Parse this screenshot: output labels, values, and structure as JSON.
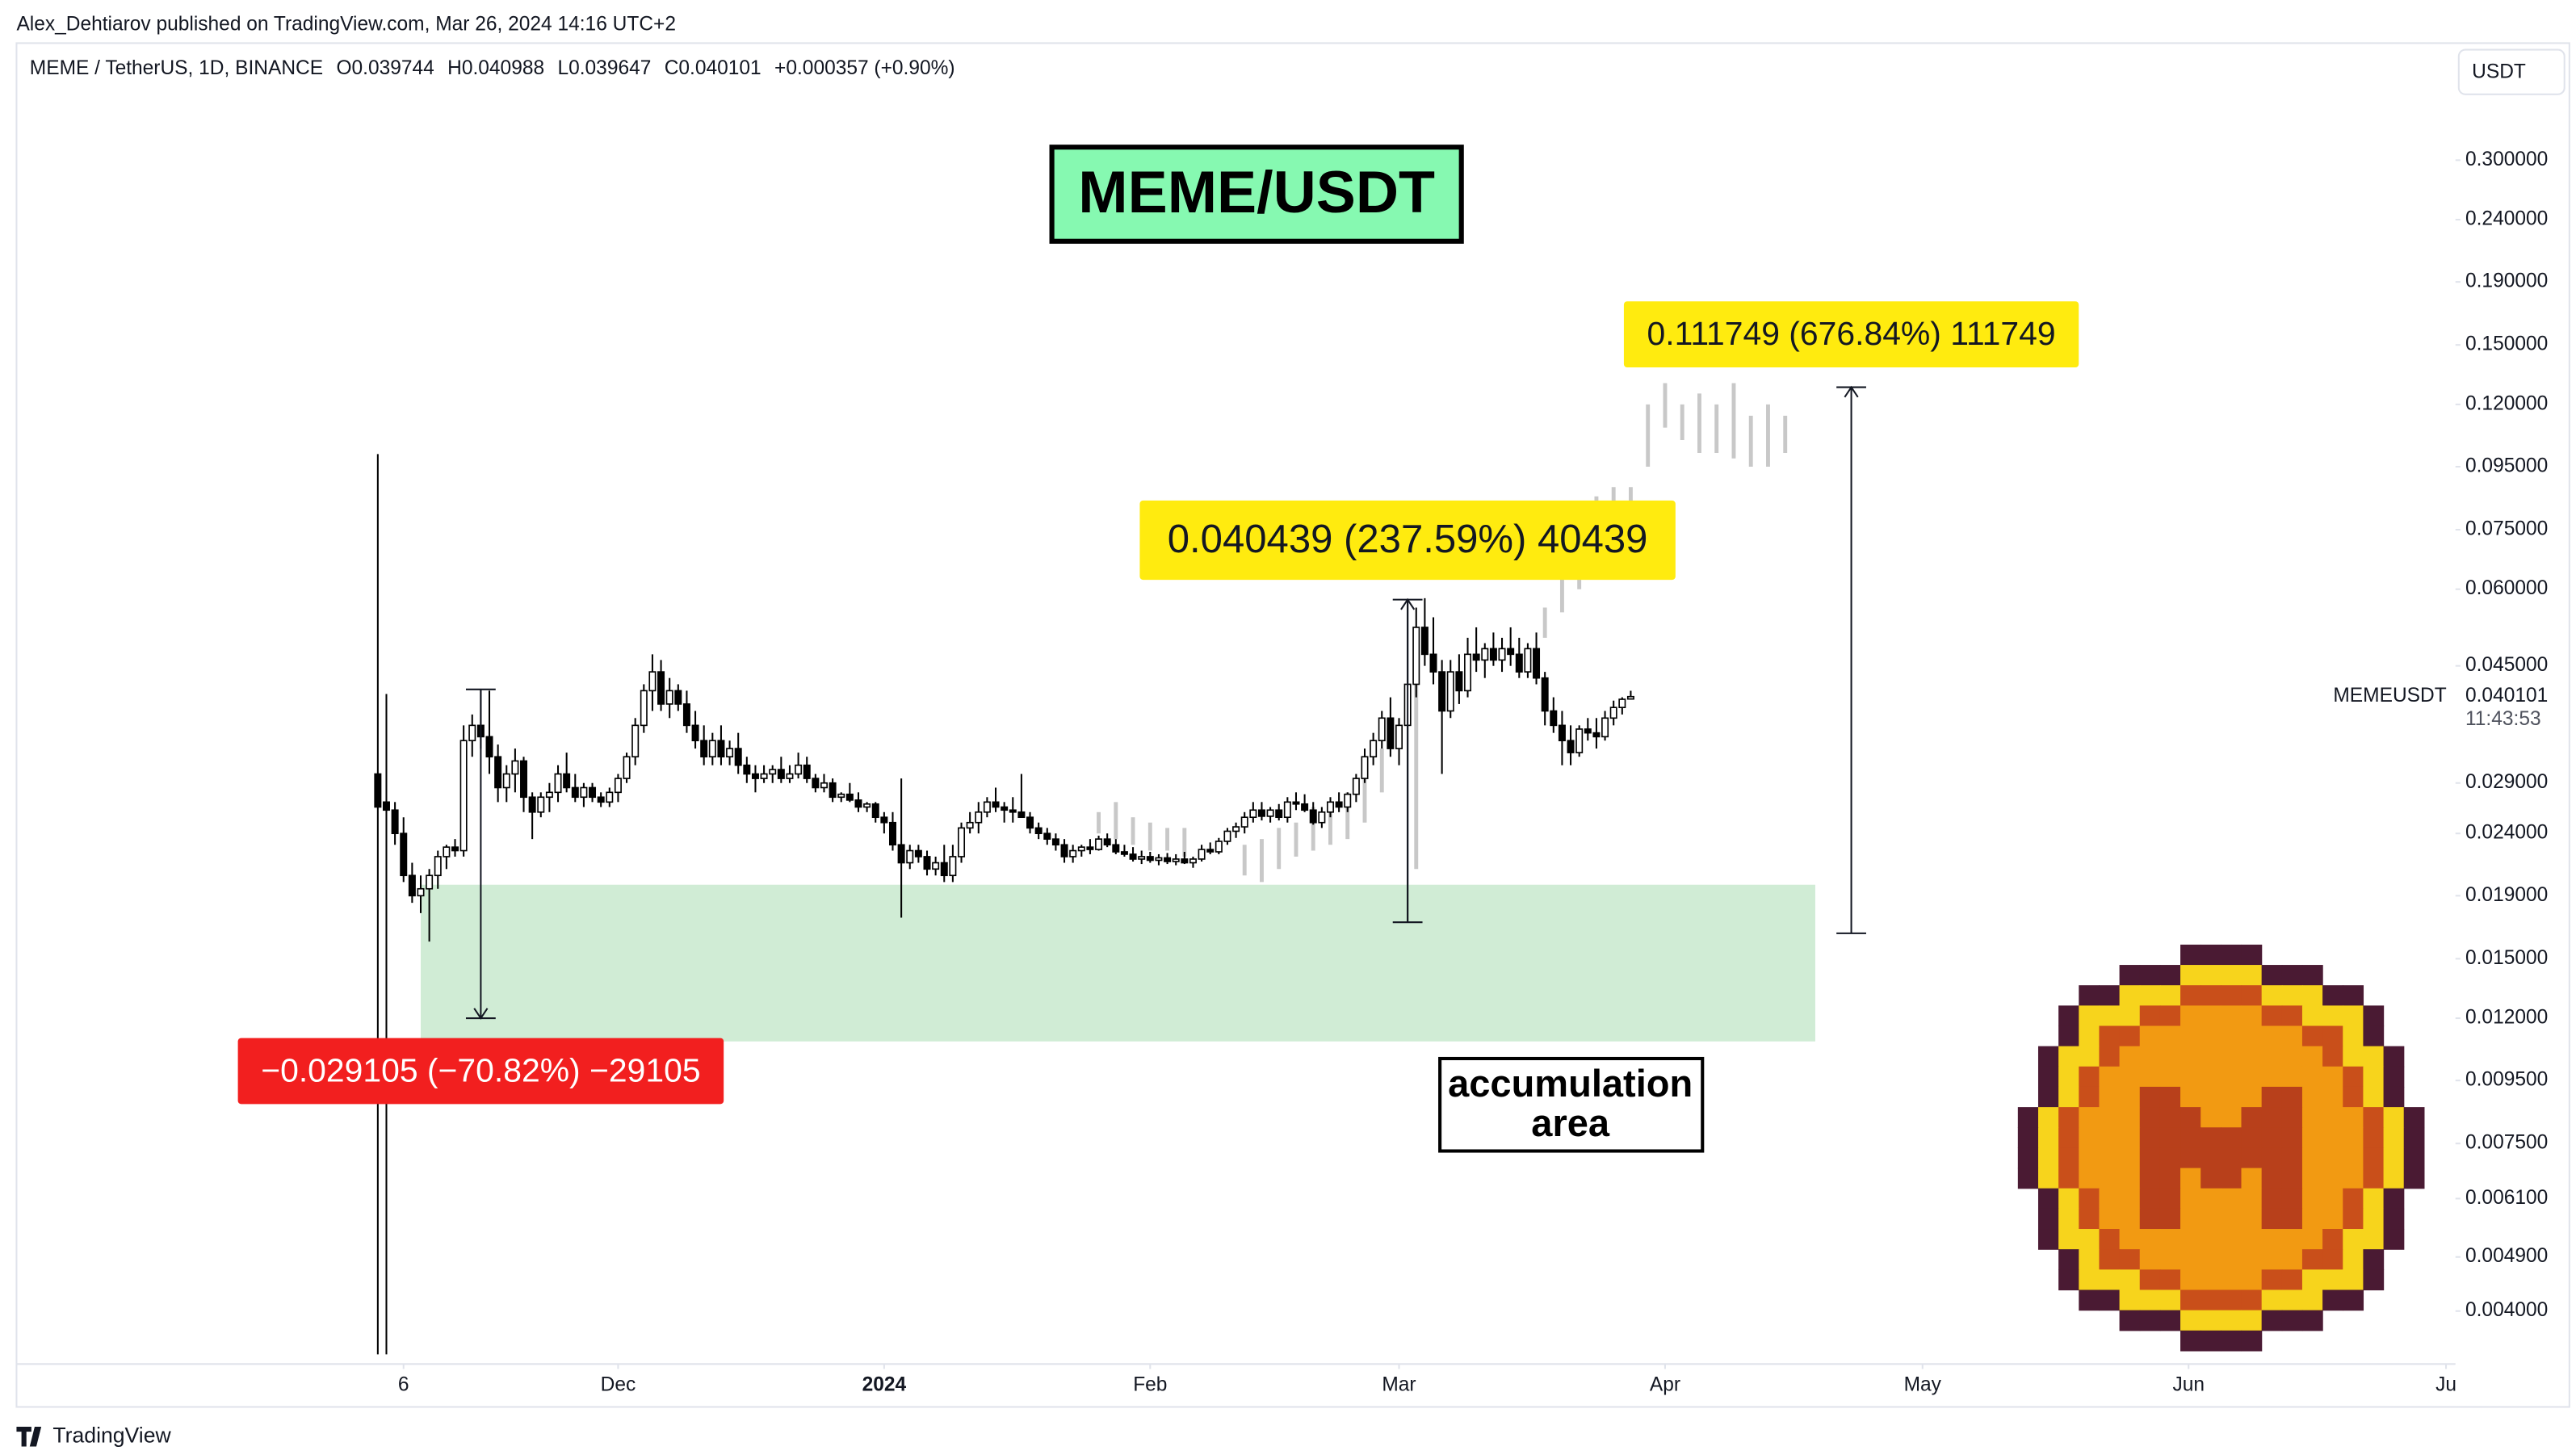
{
  "publisher": "Alex_Dehtiarov published on TradingView.com, Mar 26, 2024 14:16 UTC+2",
  "brand": "TradingView",
  "chart_data": {
    "type": "candlestick",
    "symbol": "MEME / TetherUS, 1D, BINANCE",
    "ohlc_legend": [
      "O0.039744",
      "H0.040988",
      "L0.039647",
      "C0.040101",
      "+0.000357 (+0.90%)"
    ],
    "currency": "USDT",
    "title": "MEME/USDT",
    "log_scale": true,
    "grid": false,
    "up_color": "#ffffff",
    "down_color": "#000000",
    "wick_color": "#000000",
    "candles": {
      "open": [
        0.03,
        0.027,
        0.0262,
        0.024,
        0.0205,
        0.019,
        0.0195,
        0.0205,
        0.022,
        0.0228,
        0.0225,
        0.034,
        0.036,
        0.0345,
        0.032,
        0.0285,
        0.03,
        0.0315,
        0.0275,
        0.026,
        0.0275,
        0.028,
        0.03,
        0.0285,
        0.0275,
        0.0285,
        0.0275,
        0.027,
        0.028,
        0.0295,
        0.032,
        0.036,
        0.041,
        0.044,
        0.039,
        0.041,
        0.039,
        0.036,
        0.034,
        0.032,
        0.034,
        0.032,
        0.033,
        0.031,
        0.03,
        0.0295,
        0.03,
        0.0305,
        0.0295,
        0.03,
        0.031,
        0.0295,
        0.0285,
        0.029,
        0.0275,
        0.0278,
        0.0272,
        0.0265,
        0.0268,
        0.0255,
        0.025,
        0.023,
        0.0215,
        0.0225,
        0.022,
        0.021,
        0.0215,
        0.0205,
        0.022,
        0.0245,
        0.025,
        0.026,
        0.027,
        0.0265,
        0.0262,
        0.026,
        0.0255,
        0.0245,
        0.024,
        0.0235,
        0.023,
        0.022,
        0.0225,
        0.0228,
        0.0226,
        0.0235,
        0.023,
        0.0224,
        0.0222,
        0.0218,
        0.022,
        0.0217,
        0.0219,
        0.0216,
        0.0218,
        0.0215,
        0.0218,
        0.0226,
        0.0224,
        0.0233,
        0.0242,
        0.0246,
        0.0255,
        0.0262,
        0.0256,
        0.0262,
        0.0255,
        0.027,
        0.0268,
        0.0262,
        0.025,
        0.026,
        0.027,
        0.0265,
        0.0278,
        0.0295,
        0.032,
        0.034,
        0.037,
        0.033,
        0.036,
        0.042,
        0.052,
        0.047,
        0.044,
        0.038,
        0.044,
        0.041,
        0.047,
        0.046,
        0.048,
        0.046,
        0.048,
        0.047,
        0.044,
        0.048,
        0.043,
        0.038,
        0.036,
        0.034,
        0.0325,
        0.0355,
        0.035,
        0.0345,
        0.037,
        0.0385,
        0.039744
      ],
      "high": [
        0.0996,
        0.0405,
        0.027,
        0.0255,
        0.0215,
        0.0205,
        0.021,
        0.0225,
        0.023,
        0.0235,
        0.036,
        0.0375,
        0.0412,
        0.041,
        0.0335,
        0.031,
        0.033,
        0.032,
        0.028,
        0.028,
        0.029,
        0.031,
        0.0325,
        0.03,
        0.029,
        0.029,
        0.028,
        0.0285,
        0.03,
        0.0325,
        0.037,
        0.042,
        0.047,
        0.046,
        0.043,
        0.042,
        0.041,
        0.038,
        0.036,
        0.035,
        0.036,
        0.034,
        0.035,
        0.032,
        0.031,
        0.031,
        0.031,
        0.032,
        0.031,
        0.0325,
        0.032,
        0.03,
        0.03,
        0.0295,
        0.028,
        0.029,
        0.028,
        0.027,
        0.027,
        0.026,
        0.026,
        0.0295,
        0.023,
        0.023,
        0.0225,
        0.022,
        0.023,
        0.023,
        0.025,
        0.026,
        0.027,
        0.0275,
        0.0285,
        0.027,
        0.0275,
        0.03,
        0.026,
        0.025,
        0.0245,
        0.024,
        0.0235,
        0.023,
        0.023,
        0.0235,
        0.0238,
        0.024,
        0.0235,
        0.023,
        0.0228,
        0.0225,
        0.0224,
        0.0222,
        0.0223,
        0.0222,
        0.0224,
        0.022,
        0.023,
        0.0232,
        0.0236,
        0.0245,
        0.025,
        0.026,
        0.027,
        0.027,
        0.0265,
        0.0268,
        0.0275,
        0.028,
        0.0278,
        0.027,
        0.0265,
        0.0275,
        0.028,
        0.028,
        0.03,
        0.033,
        0.035,
        0.038,
        0.04,
        0.037,
        0.0577,
        0.056,
        0.058,
        0.054,
        0.046,
        0.046,
        0.047,
        0.05,
        0.052,
        0.049,
        0.051,
        0.05,
        0.052,
        0.05,
        0.049,
        0.051,
        0.044,
        0.04,
        0.038,
        0.036,
        0.036,
        0.037,
        0.037,
        0.038,
        0.0395,
        0.04,
        0.040988
      ],
      "low": [
        0.0034,
        0.0034,
        0.023,
        0.02,
        0.0185,
        0.0178,
        0.016,
        0.0195,
        0.021,
        0.022,
        0.022,
        0.032,
        0.033,
        0.03,
        0.027,
        0.027,
        0.028,
        0.026,
        0.0235,
        0.0255,
        0.026,
        0.027,
        0.028,
        0.027,
        0.0265,
        0.027,
        0.0265,
        0.0265,
        0.027,
        0.029,
        0.031,
        0.035,
        0.038,
        0.038,
        0.037,
        0.038,
        0.035,
        0.033,
        0.031,
        0.031,
        0.031,
        0.031,
        0.03,
        0.029,
        0.028,
        0.029,
        0.029,
        0.029,
        0.029,
        0.0295,
        0.029,
        0.028,
        0.028,
        0.027,
        0.027,
        0.027,
        0.026,
        0.026,
        0.025,
        0.024,
        0.0225,
        0.0175,
        0.021,
        0.0215,
        0.0205,
        0.0205,
        0.02,
        0.02,
        0.0215,
        0.024,
        0.024,
        0.0255,
        0.026,
        0.025,
        0.025,
        0.0255,
        0.024,
        0.0235,
        0.023,
        0.0225,
        0.0215,
        0.0215,
        0.022,
        0.0222,
        0.0225,
        0.0228,
        0.0222,
        0.022,
        0.0216,
        0.0214,
        0.0215,
        0.0213,
        0.0214,
        0.0213,
        0.0214,
        0.0211,
        0.0216,
        0.0222,
        0.0222,
        0.023,
        0.0236,
        0.024,
        0.025,
        0.0252,
        0.025,
        0.0252,
        0.025,
        0.0262,
        0.026,
        0.0248,
        0.0245,
        0.0255,
        0.026,
        0.026,
        0.027,
        0.029,
        0.031,
        0.033,
        0.032,
        0.031,
        0.0172,
        0.04,
        0.045,
        0.042,
        0.03,
        0.037,
        0.039,
        0.04,
        0.044,
        0.043,
        0.045,
        0.044,
        0.045,
        0.043,
        0.043,
        0.042,
        0.036,
        0.035,
        0.031,
        0.031,
        0.032,
        0.034,
        0.033,
        0.034,
        0.036,
        0.0375,
        0.039647
      ],
      "close": [
        0.0265,
        0.0262,
        0.024,
        0.0205,
        0.019,
        0.0195,
        0.0205,
        0.022,
        0.0228,
        0.0225,
        0.034,
        0.036,
        0.0345,
        0.032,
        0.0285,
        0.03,
        0.0315,
        0.0275,
        0.026,
        0.0275,
        0.028,
        0.03,
        0.0285,
        0.0275,
        0.0285,
        0.0275,
        0.027,
        0.028,
        0.0295,
        0.032,
        0.036,
        0.041,
        0.044,
        0.039,
        0.041,
        0.039,
        0.036,
        0.034,
        0.032,
        0.034,
        0.032,
        0.033,
        0.031,
        0.03,
        0.0295,
        0.03,
        0.0305,
        0.0295,
        0.03,
        0.031,
        0.0295,
        0.0285,
        0.029,
        0.0275,
        0.0278,
        0.0272,
        0.0265,
        0.0268,
        0.0255,
        0.025,
        0.023,
        0.0215,
        0.0225,
        0.022,
        0.021,
        0.0215,
        0.0205,
        0.022,
        0.0245,
        0.025,
        0.026,
        0.027,
        0.0265,
        0.0262,
        0.026,
        0.0255,
        0.0245,
        0.024,
        0.0235,
        0.023,
        0.022,
        0.0225,
        0.0228,
        0.0226,
        0.0235,
        0.023,
        0.0224,
        0.0222,
        0.0218,
        0.022,
        0.0217,
        0.0219,
        0.0216,
        0.0218,
        0.0215,
        0.0218,
        0.0226,
        0.0224,
        0.0233,
        0.0242,
        0.0246,
        0.0255,
        0.0262,
        0.0256,
        0.0262,
        0.0255,
        0.027,
        0.0268,
        0.0262,
        0.025,
        0.026,
        0.027,
        0.0265,
        0.0278,
        0.0295,
        0.032,
        0.034,
        0.037,
        0.033,
        0.036,
        0.042,
        0.052,
        0.047,
        0.044,
        0.038,
        0.044,
        0.041,
        0.047,
        0.046,
        0.048,
        0.046,
        0.048,
        0.047,
        0.044,
        0.048,
        0.043,
        0.038,
        0.036,
        0.034,
        0.0325,
        0.0355,
        0.035,
        0.0345,
        0.037,
        0.0385,
        0.0397,
        0.040101
      ]
    },
    "projection": {
      "color": "#c8c8c8",
      "x": [
        84,
        86,
        88,
        90,
        92,
        94,
        101,
        103,
        105,
        107,
        109,
        111,
        113,
        115,
        117,
        121,
        136,
        138,
        140,
        142,
        144,
        146,
        148,
        150,
        152,
        154,
        156,
        158,
        160,
        162,
        164
      ],
      "low": [
        0.024,
        0.0235,
        0.023,
        0.0225,
        0.0225,
        0.022,
        0.0205,
        0.02,
        0.021,
        0.022,
        0.0225,
        0.023,
        0.0235,
        0.025,
        0.028,
        0.021,
        0.05,
        0.055,
        0.06,
        0.07,
        0.075,
        0.08,
        0.095,
        0.11,
        0.105,
        0.1,
        0.1,
        0.098,
        0.095,
        0.095,
        0.1
      ],
      "high": [
        0.026,
        0.027,
        0.0255,
        0.025,
        0.0245,
        0.0245,
        0.023,
        0.0235,
        0.0245,
        0.025,
        0.0265,
        0.027,
        0.028,
        0.03,
        0.033,
        0.046,
        0.056,
        0.065,
        0.078,
        0.085,
        0.088,
        0.088,
        0.12,
        0.13,
        0.12,
        0.125,
        0.12,
        0.13,
        0.115,
        0.12,
        0.115
      ]
    },
    "zone": {
      "x": [
        5,
        167.5
      ],
      "y": [
        0.011,
        0.0198
      ],
      "color": "#d0ecd5"
    },
    "annotation": [
      "accumulation",
      "area"
    ],
    "measures": [
      {
        "x": 12,
        "from": 0.0412,
        "to": 0.012,
        "label": "−0.029105 (−70.82%) −29105",
        "color": "#f21f1f",
        "text_color": "#ffffff"
      },
      {
        "x": 120,
        "from": 0.0172,
        "to": 0.0577,
        "label": "0.040439 (237.59%) 40439",
        "color": "#ffeb0f",
        "text_color": "#131722"
      },
      {
        "x": 171.7,
        "from": 0.0165,
        "to": 0.128,
        "label": "0.111749 (676.84%) 111749",
        "color": "#ffeb0f",
        "text_color": "#131722"
      }
    ],
    "last_price": {
      "symbol": "MEMEUSDT",
      "value": 0.040101,
      "label": "0.040101",
      "countdown": "11:43:53"
    },
    "xlim": [
      -42.1,
      242.1
    ],
    "xticks": [
      {
        "value": 3,
        "label": "6"
      },
      {
        "value": 28,
        "label": "Dec"
      },
      {
        "value": 59,
        "label": "2024"
      },
      {
        "value": 90,
        "label": "Feb"
      },
      {
        "value": 119,
        "label": "Mar"
      },
      {
        "value": 150,
        "label": "Apr"
      },
      {
        "value": 180,
        "label": "May"
      },
      {
        "value": 211,
        "label": "Jun"
      },
      {
        "value": 241,
        "label": "Ju"
      }
    ],
    "ylim": [
      0.0033,
      0.454
    ],
    "yticks": [
      {
        "value": 0.3,
        "label": "0.300000"
      },
      {
        "value": 0.24,
        "label": "0.240000"
      },
      {
        "value": 0.19,
        "label": "0.190000"
      },
      {
        "value": 0.15,
        "label": "0.150000"
      },
      {
        "value": 0.12,
        "label": "0.120000"
      },
      {
        "value": 0.095,
        "label": "0.095000"
      },
      {
        "value": 0.075,
        "label": "0.075000"
      },
      {
        "value": 0.06,
        "label": "0.060000"
      },
      {
        "value": 0.045,
        "label": "0.045000"
      },
      {
        "value": 0.029,
        "label": "0.029000"
      },
      {
        "value": 0.024,
        "label": "0.024000"
      },
      {
        "value": 0.019,
        "label": "0.019000"
      },
      {
        "value": 0.015,
        "label": "0.015000"
      },
      {
        "value": 0.012,
        "label": "0.012000"
      },
      {
        "value": 0.0095,
        "label": "0.009500"
      },
      {
        "value": 0.0075,
        "label": "0.007500"
      },
      {
        "value": 0.0061,
        "label": "0.006100"
      },
      {
        "value": 0.0049,
        "label": "0.004900"
      },
      {
        "value": 0.004,
        "label": "0.004000"
      }
    ]
  }
}
